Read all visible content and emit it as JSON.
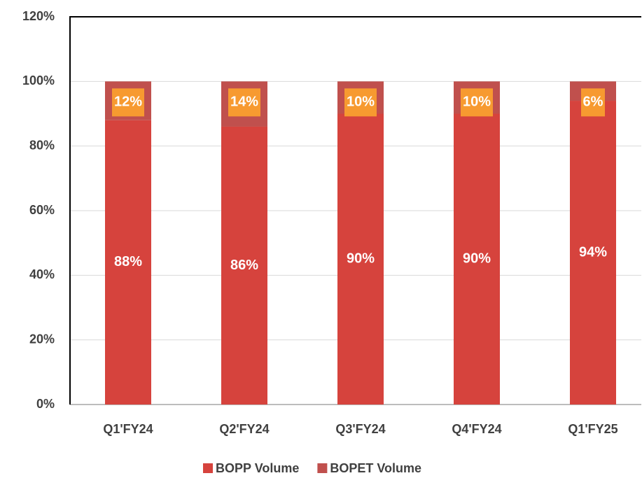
{
  "chart_data": {
    "type": "stacked_bar",
    "categories": [
      "Q1'FY24",
      "Q2'FY24",
      "Q3'FY24",
      "Q4'FY24",
      "Q1'FY25"
    ],
    "series": [
      {
        "name": "BOPP Volume",
        "color": "#d6433d",
        "values": [
          88,
          86,
          90,
          90,
          94
        ],
        "value_labels": [
          "88%",
          "86%",
          "90%",
          "90%",
          "94%"
        ]
      },
      {
        "name": "BOPET Volume",
        "color": "#c0504d",
        "values": [
          12,
          14,
          10,
          10,
          6
        ],
        "value_labels": [
          "12%",
          "14%",
          "10%",
          "10%",
          "6%"
        ]
      }
    ],
    "ylim": [
      0,
      120
    ],
    "yticks": [
      {
        "value": 0,
        "label": "0%"
      },
      {
        "value": 20,
        "label": "20%"
      },
      {
        "value": 40,
        "label": "40%"
      },
      {
        "value": 60,
        "label": "60%"
      },
      {
        "value": 80,
        "label": "80%"
      },
      {
        "value": 100,
        "label": "100%"
      },
      {
        "value": 120,
        "label": "120%"
      }
    ],
    "grid": true,
    "legend": "bottom"
  }
}
